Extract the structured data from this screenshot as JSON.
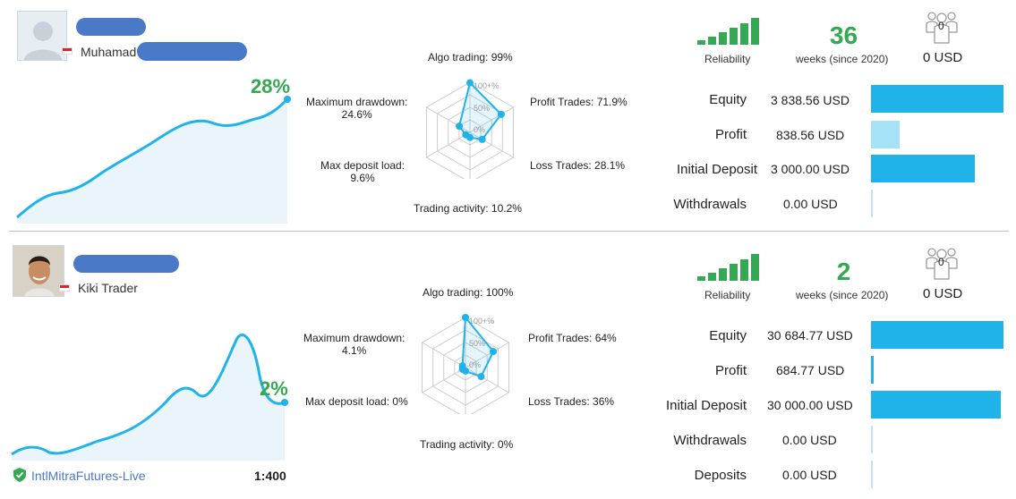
{
  "signals": [
    {
      "trader_name": "Muhamad",
      "growth": "28%",
      "radar": {
        "algo_trading": "Algo trading: 99%",
        "profit_trades": "Profit Trades: 71.9%",
        "loss_trades": "Loss Trades: 28.1%",
        "trading_activity": "Trading activity: 10.2%",
        "max_deposit_load": "Max deposit load:\n9.6%",
        "max_drawdown": "Maximum drawdown:\n24.6%",
        "scale_100": "100+%",
        "scale_50": "50%",
        "scale_0": "0%",
        "values": {
          "algo": 0.99,
          "profit": 0.719,
          "loss": 0.281,
          "activity": 0.102,
          "deposit_load": 0.096,
          "drawdown": 0.246
        }
      },
      "reliability_label": "Reliability",
      "weeks": "36",
      "weeks_label": "weeks (since 2020)",
      "subscribers": "0",
      "subscription_price": "0 USD",
      "stats": [
        {
          "label": "Equity",
          "value": "3 838.56 USD",
          "bar_fraction": 1.0,
          "bar_style": "dark"
        },
        {
          "label": "Profit",
          "value": "838.56 USD",
          "bar_fraction": 0.22,
          "bar_style": "light"
        },
        {
          "label": "Initial Deposit",
          "value": "3 000.00 USD",
          "bar_fraction": 0.79,
          "bar_style": "dark"
        },
        {
          "label": "Withdrawals",
          "value": "0.00 USD",
          "bar_fraction": 0,
          "bar_style": "empty"
        }
      ]
    },
    {
      "trader_name": "Kiki Trader",
      "growth": "2%",
      "radar": {
        "algo_trading": "Algo trading: 100%",
        "profit_trades": "Profit Trades: 64%",
        "loss_trades": "Loss Trades: 36%",
        "trading_activity": "Trading activity: 0%",
        "max_deposit_load": "Max deposit load: 0%",
        "max_drawdown": "Maximum drawdown:\n4.1%",
        "scale_100": "100+%",
        "scale_50": "50%",
        "scale_0": "0%",
        "values": {
          "algo": 1.0,
          "profit": 0.64,
          "loss": 0.36,
          "activity": 0.0,
          "deposit_load": 0.0,
          "drawdown": 0.041
        }
      },
      "reliability_label": "Reliability",
      "weeks": "2",
      "weeks_label": "weeks (since 2020)",
      "subscribers": "0",
      "subscription_price": "0 USD",
      "stats": [
        {
          "label": "Equity",
          "value": "30 684.77 USD",
          "bar_fraction": 1.0,
          "bar_style": "dark"
        },
        {
          "label": "Profit",
          "value": "684.77 USD",
          "bar_fraction": 0.02,
          "bar_style": "light"
        },
        {
          "label": "Initial Deposit",
          "value": "30 000.00 USD",
          "bar_fraction": 0.98,
          "bar_style": "dark"
        },
        {
          "label": "Withdrawals",
          "value": "0.00 USD",
          "bar_fraction": 0,
          "bar_style": "empty"
        },
        {
          "label": "Deposits",
          "value": "0.00 USD",
          "bar_fraction": 0,
          "bar_style": "empty"
        }
      ],
      "broker": "IntlMitraFutures-Live",
      "leverage": "1:400"
    }
  ],
  "colors": {
    "accent_blue": "#1fb3ea",
    "growth_green": "#35a853",
    "reliability_green": "#35a853",
    "blur_blue": "#4a79c8"
  }
}
